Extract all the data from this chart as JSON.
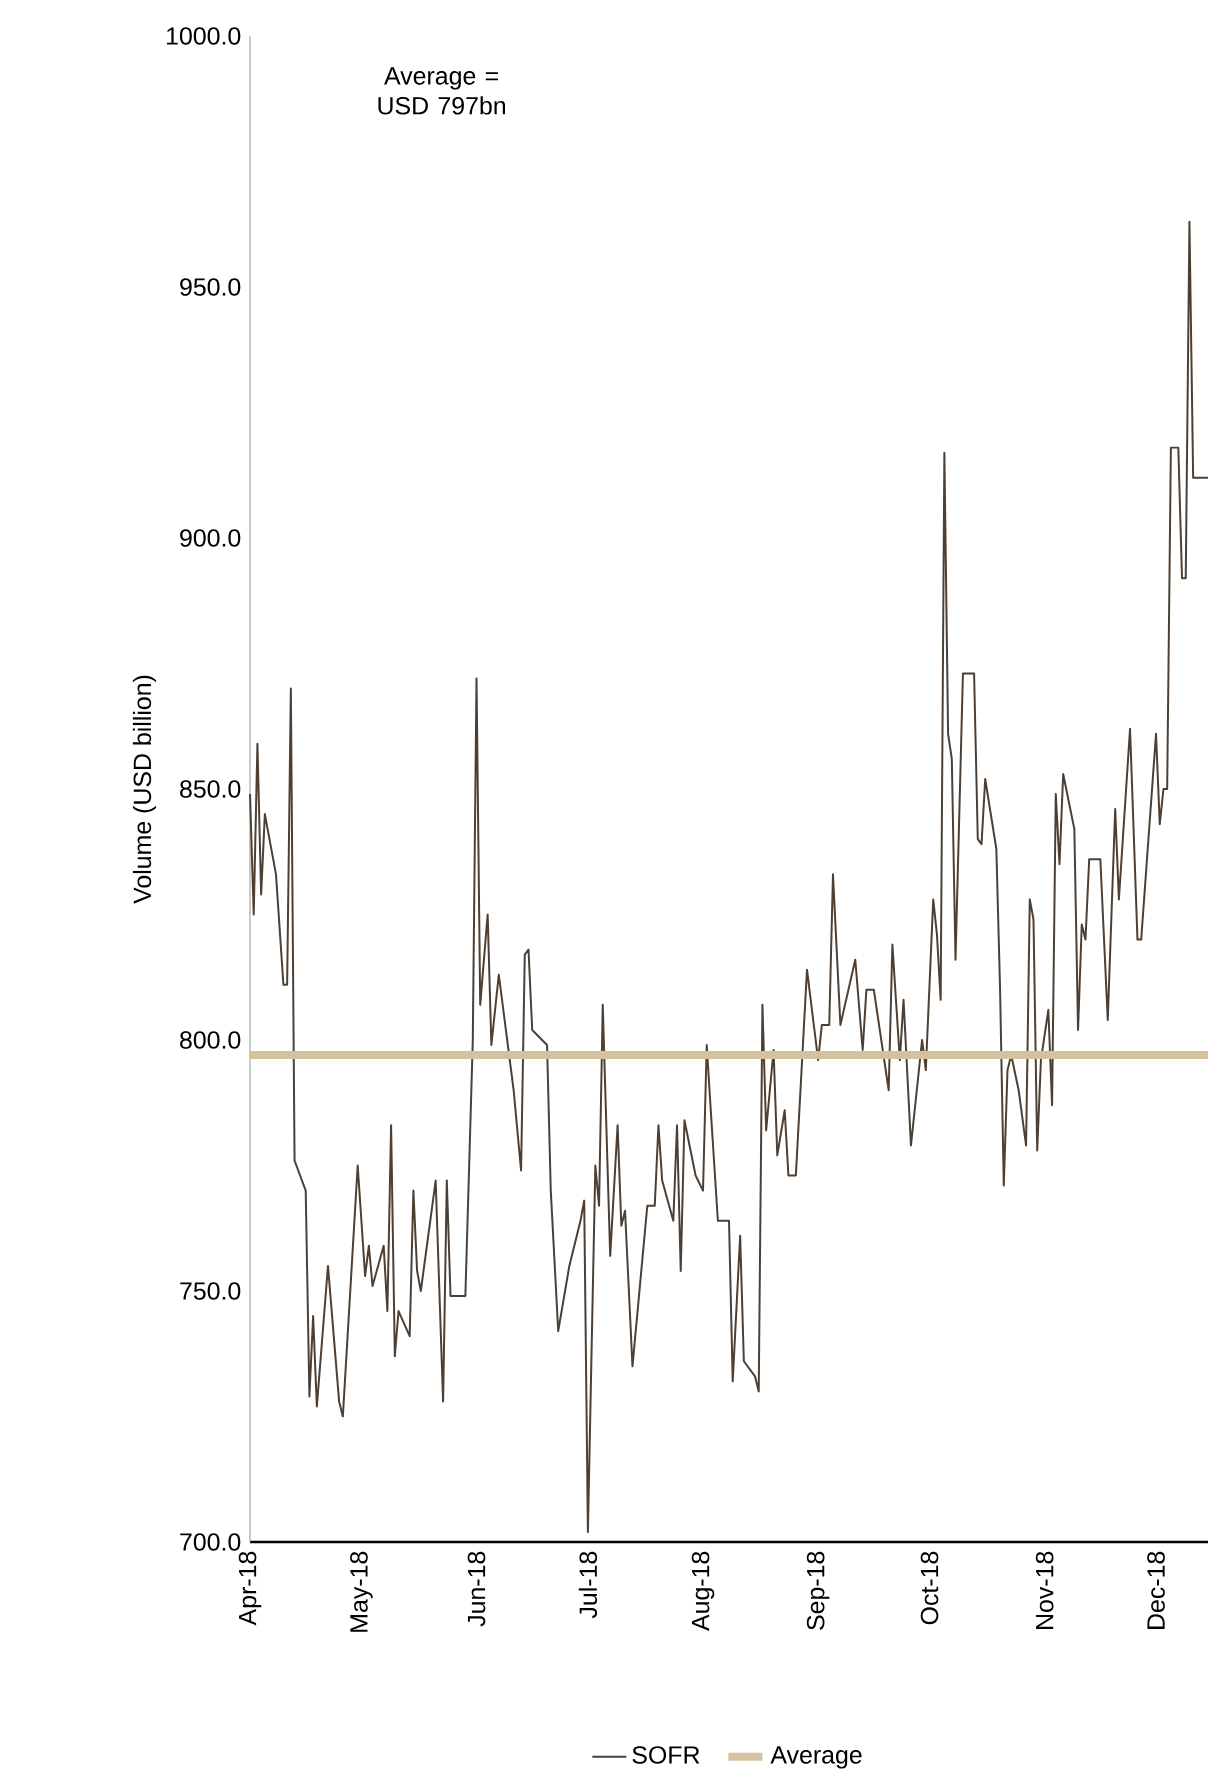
{
  "chart_data": {
    "type": "line",
    "ylabel": "Volume (USD billion)",
    "annotations": [
      "Average = USD 797bn"
    ],
    "xlim": [
      "2018-04-01",
      "2018-12-15"
    ],
    "xticks": [
      {
        "value": "2018-04-01",
        "label": "Apr-18"
      },
      {
        "value": "2018-05-01",
        "label": "May-18"
      },
      {
        "value": "2018-06-01",
        "label": "Jun-18"
      },
      {
        "value": "2018-07-01",
        "label": "Jul-18"
      },
      {
        "value": "2018-08-01",
        "label": "Aug-18"
      },
      {
        "value": "2018-09-01",
        "label": "Sep-18"
      },
      {
        "value": "2018-10-01",
        "label": "Oct-18"
      },
      {
        "value": "2018-11-01",
        "label": "Nov-18"
      },
      {
        "value": "2018-12-01",
        "label": "Dec-18"
      }
    ],
    "ylim": [
      700,
      1000
    ],
    "yticks": [
      {
        "value": 700,
        "label": "700.0"
      },
      {
        "value": 750,
        "label": "750.0"
      },
      {
        "value": 800,
        "label": "800.0"
      },
      {
        "value": 850,
        "label": "850.0"
      },
      {
        "value": 900,
        "label": "900.0"
      },
      {
        "value": 950,
        "label": "950.0"
      },
      {
        "value": 1000,
        "label": "1000.0"
      }
    ],
    "legend": "bottom",
    "grid": false,
    "marker": "none",
    "line_style": "solid",
    "ref_lines": [
      {
        "axis": "y",
        "value": 797,
        "label": "Average",
        "color": "#d3c29c"
      }
    ],
    "series": [
      {
        "name": "SOFR",
        "color": "#4d3f33",
        "x": [
          "2018-04-01",
          "2018-04-02",
          "2018-04-03",
          "2018-04-04",
          "2018-04-05",
          "2018-04-08",
          "2018-04-10",
          "2018-04-11",
          "2018-04-12",
          "2018-04-13",
          "2018-04-16",
          "2018-04-17",
          "2018-04-18",
          "2018-04-19",
          "2018-04-22",
          "2018-04-25",
          "2018-04-26",
          "2018-04-30",
          "2018-05-02",
          "2018-05-03",
          "2018-05-04",
          "2018-05-07",
          "2018-05-08",
          "2018-05-09",
          "2018-05-10",
          "2018-05-11",
          "2018-05-14",
          "2018-05-15",
          "2018-05-16",
          "2018-05-17",
          "2018-05-21",
          "2018-05-23",
          "2018-05-24",
          "2018-05-25",
          "2018-05-29",
          "2018-05-31",
          "2018-06-01",
          "2018-06-02",
          "2018-06-04",
          "2018-06-05",
          "2018-06-07",
          "2018-06-11",
          "2018-06-13",
          "2018-06-14",
          "2018-06-15",
          "2018-06-16",
          "2018-06-20",
          "2018-06-21",
          "2018-06-23",
          "2018-06-26",
          "2018-06-29",
          "2018-06-30",
          "2018-07-01",
          "2018-07-03",
          "2018-07-04",
          "2018-07-05",
          "2018-07-07",
          "2018-07-09",
          "2018-07-10",
          "2018-07-11",
          "2018-07-13",
          "2018-07-17",
          "2018-07-19",
          "2018-07-20",
          "2018-07-21",
          "2018-07-24",
          "2018-07-25",
          "2018-07-26",
          "2018-07-27",
          "2018-07-30",
          "2018-08-01",
          "2018-08-02",
          "2018-08-03",
          "2018-08-05",
          "2018-08-08",
          "2018-08-09",
          "2018-08-11",
          "2018-08-12",
          "2018-08-15",
          "2018-08-16",
          "2018-08-17",
          "2018-08-18",
          "2018-08-20",
          "2018-08-21",
          "2018-08-23",
          "2018-08-24",
          "2018-08-26",
          "2018-08-29",
          "2018-09-01",
          "2018-09-02",
          "2018-09-04",
          "2018-09-05",
          "2018-09-07",
          "2018-09-11",
          "2018-09-13",
          "2018-09-14",
          "2018-09-16",
          "2018-09-20",
          "2018-09-21",
          "2018-09-23",
          "2018-09-24",
          "2018-09-26",
          "2018-09-29",
          "2018-09-30",
          "2018-10-02",
          "2018-10-03",
          "2018-10-04",
          "2018-10-05",
          "2018-10-06",
          "2018-10-07",
          "2018-10-08",
          "2018-10-10",
          "2018-10-13",
          "2018-10-14",
          "2018-10-15",
          "2018-10-16",
          "2018-10-19",
          "2018-10-20",
          "2018-10-21",
          "2018-10-22",
          "2018-10-23",
          "2018-10-25",
          "2018-10-27",
          "2018-10-28",
          "2018-10-29",
          "2018-10-30",
          "2018-10-31",
          "2018-11-02",
          "2018-11-03",
          "2018-11-04",
          "2018-11-05",
          "2018-11-06",
          "2018-11-09",
          "2018-11-10",
          "2018-11-11",
          "2018-11-12",
          "2018-11-13",
          "2018-11-16",
          "2018-11-18",
          "2018-11-20",
          "2018-11-21",
          "2018-11-24",
          "2018-11-26",
          "2018-11-27",
          "2018-12-01",
          "2018-12-02",
          "2018-12-03",
          "2018-12-04",
          "2018-12-05",
          "2018-12-07",
          "2018-12-08",
          "2018-12-09",
          "2018-12-10",
          "2018-12-11",
          "2018-12-15"
        ],
        "values": [
          849,
          825,
          859,
          829,
          845,
          833,
          811,
          811,
          870,
          776,
          770,
          729,
          745,
          727,
          755,
          728,
          725,
          775,
          753,
          759,
          751,
          759,
          746,
          783,
          737,
          746,
          741,
          770,
          754,
          750,
          772,
          728,
          772,
          749,
          749,
          800,
          872,
          807,
          825,
          799,
          813,
          790,
          774,
          817,
          818,
          802,
          799,
          770,
          742,
          755,
          764,
          768,
          702,
          775,
          767,
          807,
          757,
          783,
          763,
          766,
          735,
          767,
          767,
          783,
          772,
          764,
          783,
          754,
          784,
          773,
          770,
          799,
          787,
          764,
          764,
          732,
          761,
          736,
          733,
          730,
          807,
          782,
          798,
          777,
          786,
          773,
          773,
          814,
          796,
          803,
          803,
          833,
          803,
          816,
          798,
          810,
          810,
          790,
          819,
          796,
          808,
          779,
          800,
          794,
          828,
          821,
          808,
          917,
          861,
          856,
          816,
          873,
          873,
          840,
          839,
          852,
          838,
          810,
          771,
          794,
          797,
          790,
          779,
          828,
          824,
          778,
          796,
          806,
          787,
          849,
          835,
          853,
          842,
          802,
          823,
          820,
          836,
          836,
          804,
          846,
          828,
          862,
          820,
          820,
          861,
          843,
          850,
          850,
          918,
          918,
          892,
          892,
          963,
          912,
          912
        ]
      }
    ]
  }
}
